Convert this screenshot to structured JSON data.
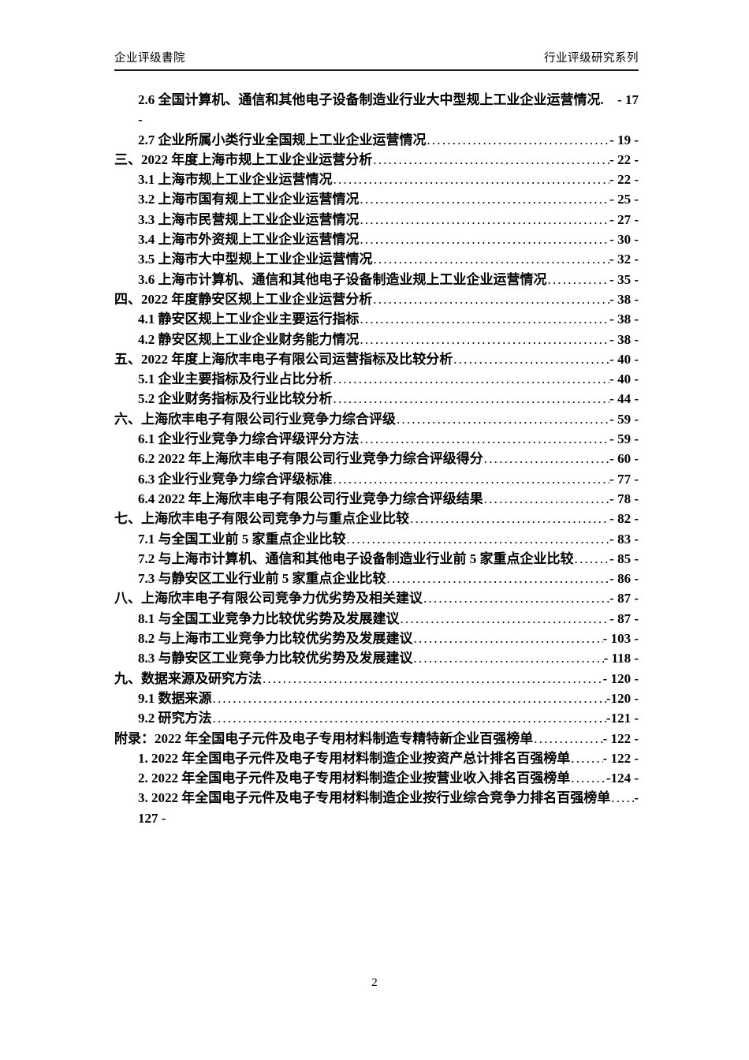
{
  "header": {
    "left": "企业评级書院",
    "right": "行业评级研究系列"
  },
  "colors": {
    "ink": "#000000",
    "header_rule": "#161616"
  },
  "toc": {
    "entries": [
      {
        "level": 1,
        "text": "2.6 全国计算机、通信和其他电子设备制造业行业大中型规上工业企业运营情况.",
        "page": "- 17",
        "leader": false,
        "wrap": "-"
      },
      {
        "level": 1,
        "text": "2.7 企业所属小类行业全国规上工业企业运营情况",
        "page": "- 19 -",
        "leader": true
      },
      {
        "level": 0,
        "text": "三、2022 年度上海市规上工业企业运营分析",
        "page": "- 22 -",
        "leader": true
      },
      {
        "level": 1,
        "text": "3.1 上海市规上工业企业运营情况",
        "page": "- 22 -",
        "leader": true
      },
      {
        "level": 1,
        "text": "3.2 上海市国有规上工业企业运营情况",
        "page": "- 25 -",
        "leader": true
      },
      {
        "level": 1,
        "text": "3.3 上海市民营规上工业企业运营情况",
        "page": "- 27 -",
        "leader": true
      },
      {
        "level": 1,
        "text": "3.4 上海市外资规上工业企业运营情况",
        "page": "- 30 -",
        "leader": true
      },
      {
        "level": 1,
        "text": "3.5 上海市大中型规上工业企业运营情况",
        "page": "- 32 -",
        "leader": true
      },
      {
        "level": 1,
        "text": "3.6 上海市计算机、通信和其他电子设备制造业规上工业企业运营情况",
        "page": "- 35 -",
        "leader": true
      },
      {
        "level": 0,
        "text": "四、2022 年度静安区规上工业企业运营分析",
        "page": "- 38 -",
        "leader": true
      },
      {
        "level": 1,
        "text": "4.1 静安区规上工业企业主要运行指标",
        "page": "- 38 -",
        "leader": true
      },
      {
        "level": 1,
        "text": "4.2 静安区规上工业企业财务能力情况",
        "page": "- 38 -",
        "leader": true
      },
      {
        "level": 0,
        "text": "五、2022 年度上海欣丰电子有限公司运营指标及比较分析",
        "page": "- 40 -",
        "leader": true
      },
      {
        "level": 1,
        "text": "5.1 企业主要指标及行业占比分析",
        "page": "- 40 -",
        "leader": true
      },
      {
        "level": 1,
        "text": "5.2 企业财务指标及行业比较分析",
        "page": "- 44 -",
        "leader": true
      },
      {
        "level": 0,
        "text": "六、上海欣丰电子有限公司行业竞争力综合评级",
        "page": "- 59 -",
        "leader": true
      },
      {
        "level": 1,
        "text": "6.1 企业行业竞争力综合评级评分方法",
        "page": "- 59 -",
        "leader": true
      },
      {
        "level": 1,
        "text": "6.2 2022 年上海欣丰电子有限公司行业竞争力综合评级得分",
        "page": "- 60 -",
        "leader": true
      },
      {
        "level": 1,
        "text": "6.3 企业行业竞争力综合评级标准",
        "page": "- 77 -",
        "leader": true
      },
      {
        "level": 1,
        "text": "6.4 2022 年上海欣丰电子有限公司行业竞争力综合评级结果",
        "page": "- 78 -",
        "leader": true
      },
      {
        "level": 0,
        "text": "七、上海欣丰电子有限公司竞争力与重点企业比较",
        "page": "- 82 -",
        "leader": true
      },
      {
        "level": 1,
        "text": "7.1 与全国工业前 5 家重点企业比较",
        "page": "- 83 -",
        "leader": true
      },
      {
        "level": 1,
        "text": "7.2 与上海市计算机、通信和其他电子设备制造业行业前 5 家重点企业比较",
        "page": "- 85 -",
        "leader": true
      },
      {
        "level": 1,
        "text": "7.3 与静安区工业行业前 5 家重点企业比较",
        "page": "- 86 -",
        "leader": true
      },
      {
        "level": 0,
        "text": "八、上海欣丰电子有限公司竞争力优劣势及相关建议",
        "page": "- 87 -",
        "leader": true
      },
      {
        "level": 1,
        "text": "8.1 与全国工业竞争力比较优劣势及发展建议",
        "page": "- 87 -",
        "leader": true
      },
      {
        "level": 1,
        "text": "8.2 与上海市工业竞争力比较优劣势及发展建议",
        "page": "- 103 -",
        "leader": true
      },
      {
        "level": 1,
        "text": "8.3 与静安区工业竞争力比较优劣势及发展建议",
        "page": "- 118 -",
        "leader": true
      },
      {
        "level": 0,
        "text": "九、数据来源及研究方法",
        "page": "- 120 -",
        "leader": true
      },
      {
        "level": 1,
        "text": "9.1 数据来源",
        "page": "-120 -",
        "leader": true
      },
      {
        "level": 1,
        "text": "9.2 研究方法",
        "page": "-121 -",
        "leader": true
      },
      {
        "level": 0,
        "text": "附录：2022 年全国电子元件及电子专用材料制造专精特新企业百强榜单",
        "page": "- 122 -",
        "leader": true
      },
      {
        "level": 1,
        "text": "1. 2022 年全国电子元件及电子专用材料制造企业按资产总计排名百强榜单",
        "page": "- 122 -",
        "leader": true
      },
      {
        "level": 1,
        "text": "2. 2022 年全国电子元件及电子专用材料制造企业按营业收入排名百强榜单",
        "page": "-124 -",
        "leader": true
      },
      {
        "level": 1,
        "text": "3. 2022 年全国电子元件及电子专用材料制造企业按行业综合竞争力排名百强榜单",
        "page": "-",
        "leader": true,
        "wrap": "127 -"
      }
    ]
  },
  "footer": {
    "page_number": "2"
  }
}
